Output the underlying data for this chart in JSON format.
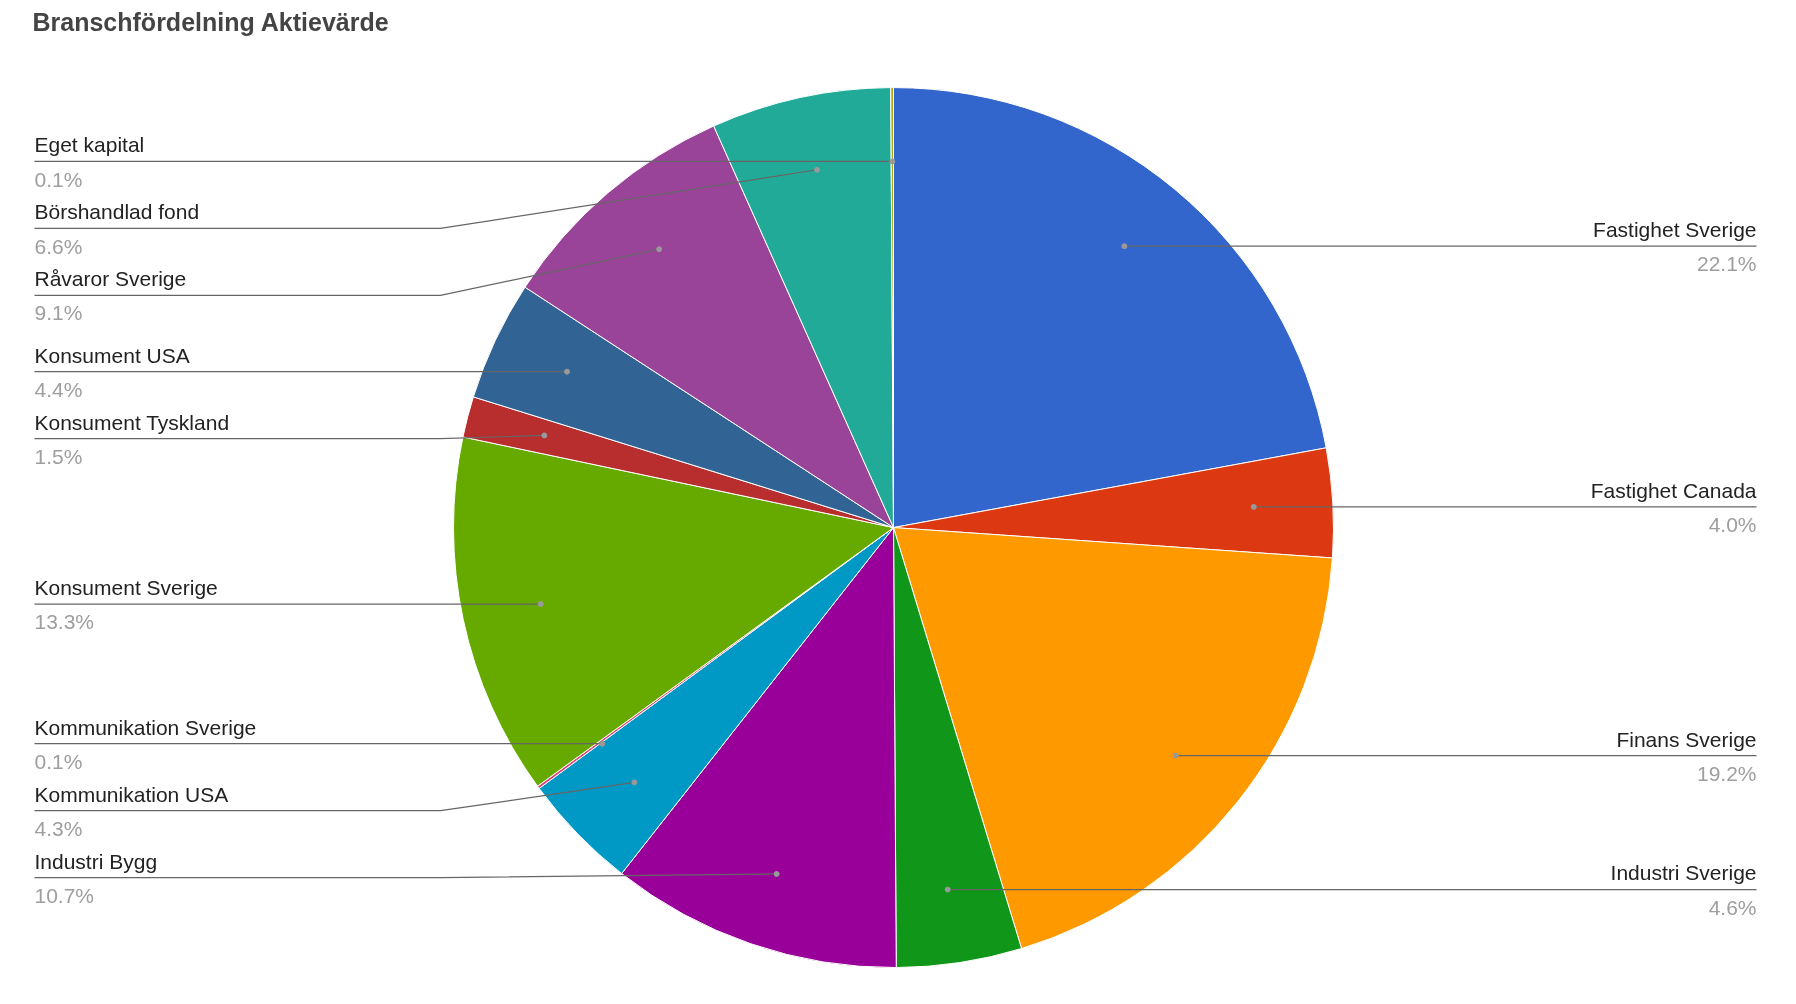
{
  "chart_data": {
    "type": "pie",
    "title": "Branschfördelning Aktievärde",
    "categories": [
      "Fastighet Sverige",
      "Fastighet Canada",
      "Finans Sverige",
      "Industri Sverige",
      "Industri Bygg",
      "Kommunikation USA",
      "Kommunikation Sverige",
      "Konsument Sverige",
      "Konsument Tyskland",
      "Konsument USA",
      "Råvaror Sverige",
      "Börshandlad fond",
      "Eget kapital"
    ],
    "values": [
      22.1,
      4.0,
      19.2,
      4.6,
      10.7,
      4.3,
      0.1,
      13.3,
      1.5,
      4.4,
      9.1,
      6.6,
      0.1
    ],
    "value_labels": [
      "22.1%",
      "4.0%",
      "19.2%",
      "4.6%",
      "10.7%",
      "4.3%",
      "0.1%",
      "13.3%",
      "1.5%",
      "4.4%",
      "9.1%",
      "6.6%",
      "0.1%"
    ],
    "colors": [
      "#3366cc",
      "#dc3912",
      "#ff9900",
      "#109618",
      "#990099",
      "#0099c6",
      "#dd4477",
      "#66aa00",
      "#b82e2e",
      "#316395",
      "#994499",
      "#22aa99",
      "#aaaa11"
    ]
  }
}
